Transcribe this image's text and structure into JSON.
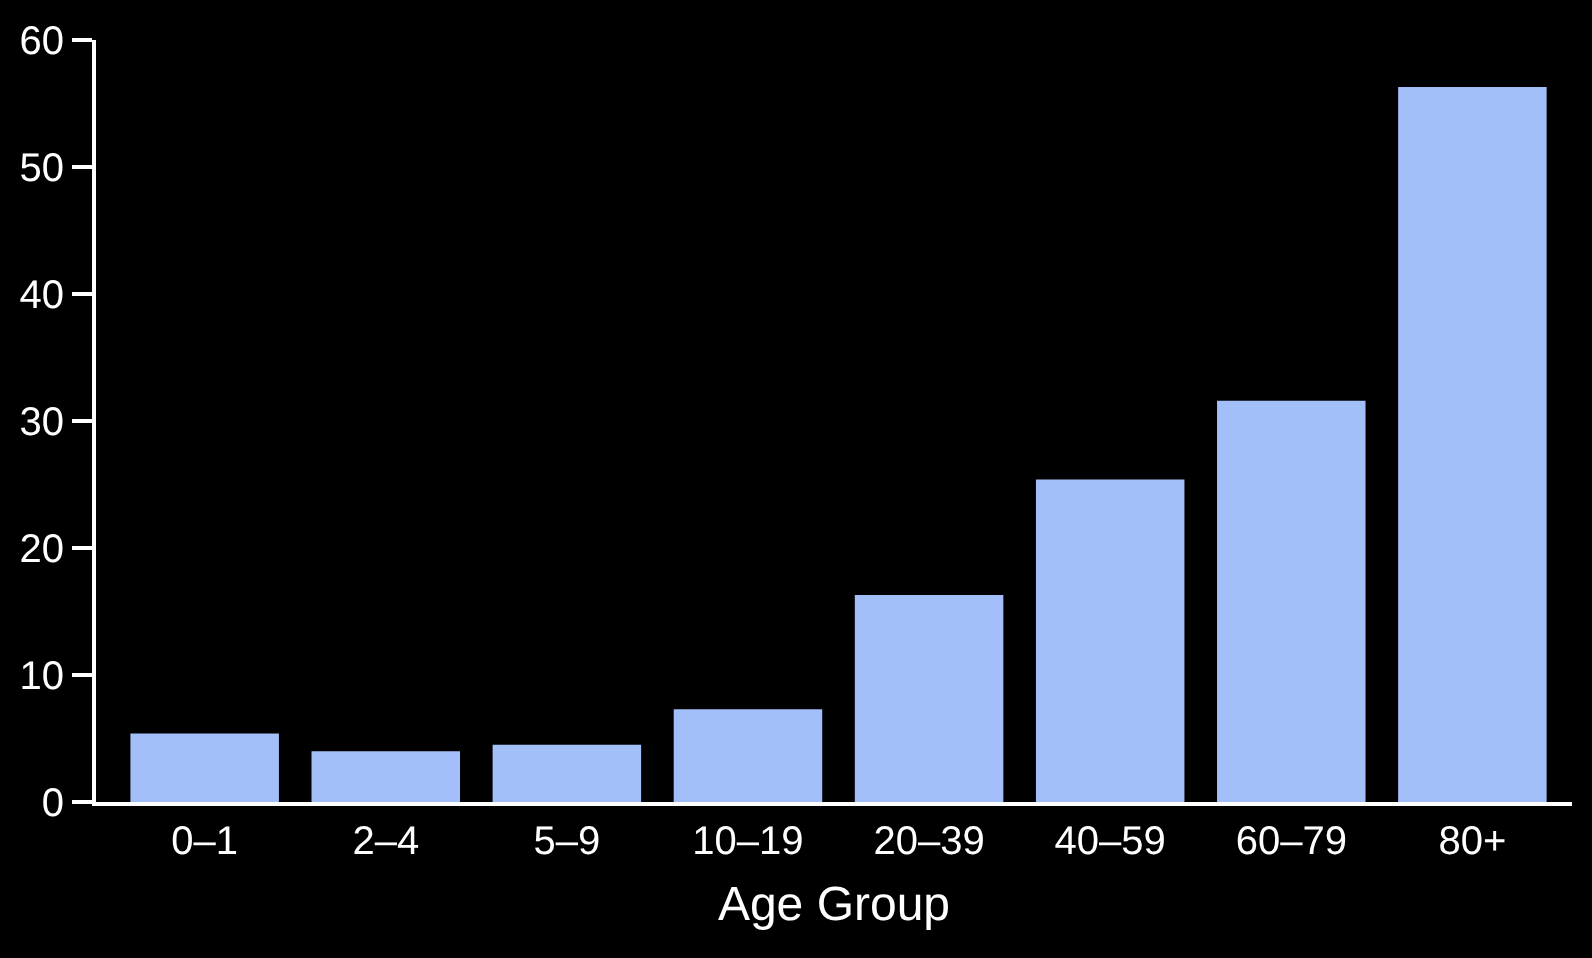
{
  "chart_data": {
    "type": "bar",
    "xlabel": "Age Group",
    "categories": [
      "0–1",
      "2–4",
      "5–9",
      "10–19",
      "20–39",
      "40–59",
      "60–79",
      "80+"
    ],
    "values": [
      5.4,
      4.0,
      4.5,
      7.3,
      16.3,
      25.4,
      31.6,
      56.3
    ],
    "color": "#a3bffa",
    "ylim": [
      0,
      60
    ],
    "yticks": [
      0,
      10,
      20,
      30,
      40,
      50,
      60
    ],
    "grid": false
  }
}
